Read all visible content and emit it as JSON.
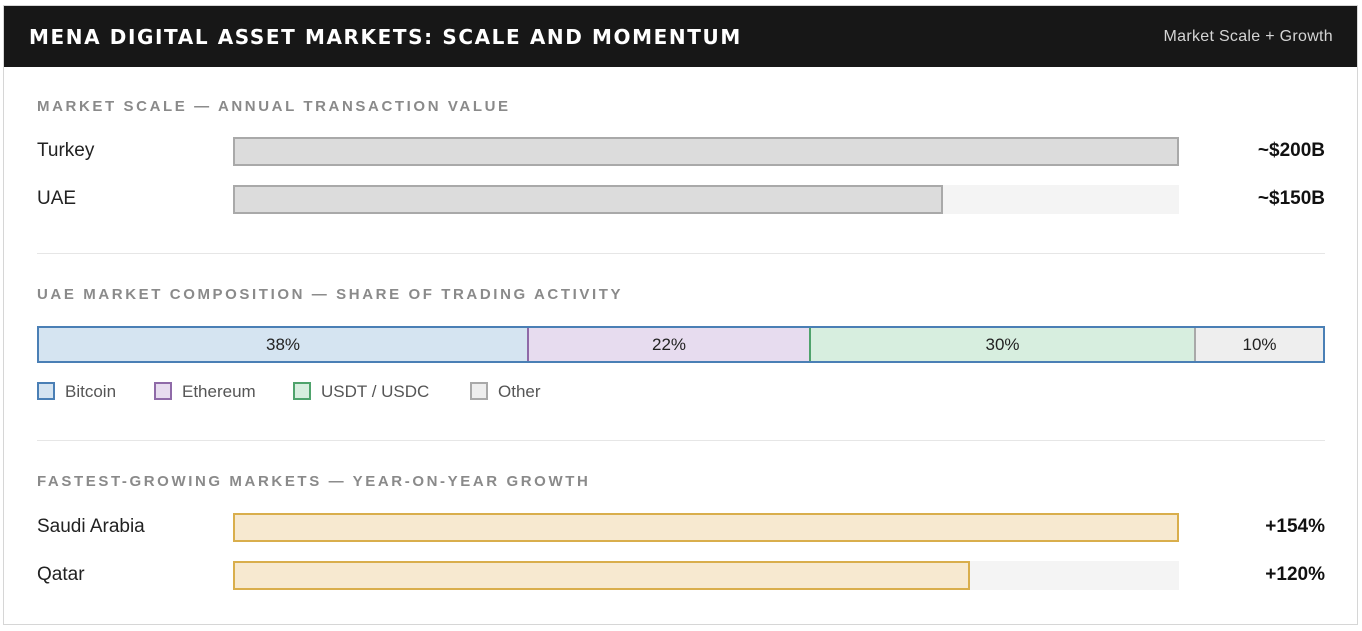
{
  "header": {
    "title": "MENA DIGITAL ASSET MARKETS: SCALE AND MOMENTUM",
    "subtitle": "Market Scale + Growth"
  },
  "colors": {
    "header_bg": "#171717",
    "scale_fill": "#dcdcdc",
    "growth_fill": "#f7e9d0",
    "growth_border": "#d9ae4c",
    "bitcoin": "#d5e4f1",
    "ethereum": "#e7dcef",
    "stablecoin": "#d7eedf",
    "other": "#eeeeee"
  },
  "chart_data": [
    {
      "type": "bar",
      "orientation": "horizontal",
      "title": "MARKET SCALE — ANNUAL TRANSACTION VALUE",
      "categories": [
        "Turkey",
        "UAE"
      ],
      "values": [
        200,
        150
      ],
      "value_labels": [
        "~$200B",
        "~$150B"
      ],
      "unit": "billion USD",
      "xlim": [
        0,
        200
      ]
    },
    {
      "type": "bar",
      "orientation": "horizontal",
      "stacked": true,
      "title": "UAE MARKET COMPOSITION — SHARE OF TRADING ACTIVITY",
      "series": [
        {
          "name": "Bitcoin",
          "value": 38,
          "label": "38%",
          "fill": "#d5e4f1",
          "stroke": "#4a7fb5"
        },
        {
          "name": "Ethereum",
          "value": 22,
          "label": "22%",
          "fill": "#e7dcef",
          "stroke": "#8f6aa8"
        },
        {
          "name": "USDT / USDC",
          "value": 30,
          "label": "30%",
          "fill": "#d7eedf",
          "stroke": "#4fa36c"
        },
        {
          "name": "Other",
          "value": 10,
          "label": "10%",
          "fill": "#eeeeee",
          "stroke": "#a9a9a9"
        }
      ],
      "legend_position": "bottom-left"
    },
    {
      "type": "bar",
      "orientation": "horizontal",
      "title": "FASTEST-GROWING MARKETS — YEAR-ON-YEAR GROWTH",
      "categories": [
        "Saudi Arabia",
        "Qatar"
      ],
      "values": [
        154,
        120
      ],
      "value_labels": [
        "+154%",
        "+120%"
      ],
      "unit": "percent",
      "xlim": [
        0,
        154
      ]
    }
  ]
}
